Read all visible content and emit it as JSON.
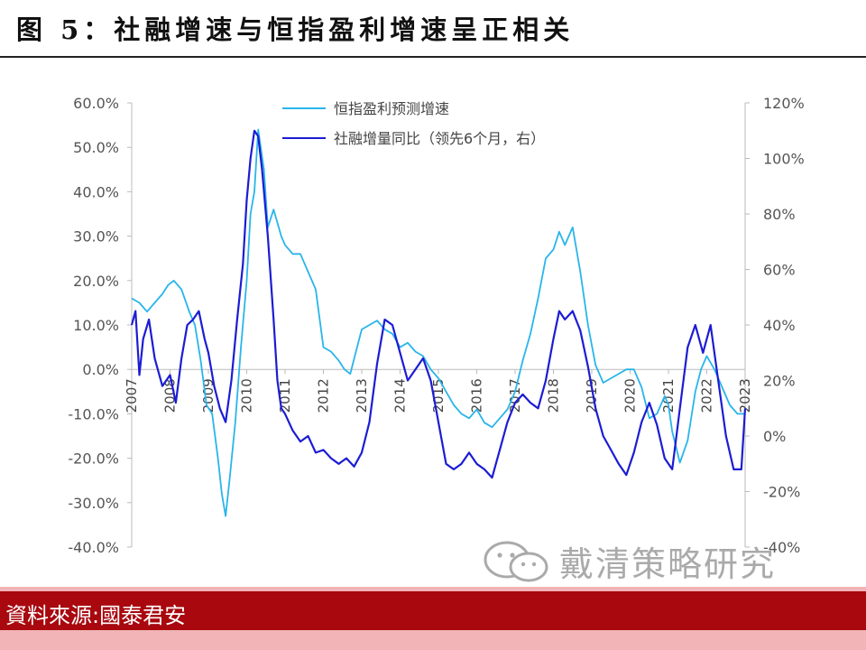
{
  "figure": {
    "title": "图 5：社融增速与恒指盈利增速呈正相关",
    "source": "資料來源:國泰君安",
    "watermark": "戴清策略研究"
  },
  "colors": {
    "series1": "#29b5ea",
    "series2": "#1c1cd4",
    "source_bar": "#a8080e",
    "strip": "#f2b4b6"
  },
  "icons": {
    "watermark": "wechat-logo-icon"
  },
  "chart_data": {
    "type": "line",
    "left_axis": {
      "ylim": [
        -0.4,
        0.6
      ],
      "ticks": [
        0.6,
        0.5,
        0.4,
        0.3,
        0.2,
        0.1,
        0.0,
        -0.1,
        -0.2,
        -0.3,
        -0.4
      ],
      "tick_labels": [
        "60.0%",
        "50.0%",
        "40.0%",
        "30.0%",
        "20.0%",
        "10.0%",
        "0.0%",
        "-10.0%",
        "-20.0%",
        "-30.0%",
        "-40.0%"
      ]
    },
    "right_axis": {
      "ylim": [
        -0.4,
        1.2
      ],
      "ticks": [
        1.2,
        1.0,
        0.8,
        0.6,
        0.4,
        0.2,
        0.0,
        -0.2,
        -0.4
      ],
      "tick_labels": [
        "120%",
        "100%",
        "80%",
        "60%",
        "40%",
        "20%",
        "0%",
        "-20%",
        "-40%"
      ]
    },
    "x_axis": {
      "range": [
        2007.0,
        2023.0
      ],
      "ticks": [
        2007,
        2008,
        2009,
        2010,
        2011,
        2012,
        2013,
        2014,
        2015,
        2016,
        2017,
        2018,
        2019,
        2020,
        2021,
        2022,
        2023
      ],
      "tick_labels": [
        "2007",
        "2008",
        "2009",
        "2010",
        "2011",
        "2012",
        "2013",
        "2014",
        "2015",
        "2016",
        "2017",
        "2018",
        "2019",
        "2020",
        "2021",
        "2022",
        "2023"
      ]
    },
    "legend_position": "top-center",
    "series": [
      {
        "name": "恒指盈利预测增速",
        "axis": "left",
        "color": "#29b5ea",
        "x": [
          2007.0,
          2007.2,
          2007.4,
          2007.6,
          2007.8,
          2007.95,
          2008.1,
          2008.3,
          2008.5,
          2008.65,
          2008.8,
          2008.95,
          2009.1,
          2009.25,
          2009.35,
          2009.45,
          2009.55,
          2009.7,
          2009.85,
          2010.0,
          2010.1,
          2010.2,
          2010.3,
          2010.45,
          2010.55,
          2010.7,
          2010.9,
          2011.0,
          2011.2,
          2011.4,
          2011.6,
          2011.8,
          2012.0,
          2012.2,
          2012.4,
          2012.55,
          2012.7,
          2012.85,
          2013.0,
          2013.2,
          2013.4,
          2013.6,
          2013.8,
          2014.0,
          2014.2,
          2014.4,
          2014.6,
          2014.8,
          2015.0,
          2015.2,
          2015.4,
          2015.6,
          2015.8,
          2016.0,
          2016.2,
          2016.4,
          2016.6,
          2016.8,
          2017.0,
          2017.2,
          2017.4,
          2017.6,
          2017.8,
          2018.0,
          2018.15,
          2018.3,
          2018.5,
          2018.7,
          2018.9,
          2019.1,
          2019.3,
          2019.5,
          2019.7,
          2019.9,
          2020.1,
          2020.3,
          2020.5,
          2020.7,
          2020.9,
          2021.0,
          2021.1,
          2021.3,
          2021.5,
          2021.7,
          2021.85,
          2022.0,
          2022.2,
          2022.4,
          2022.6,
          2022.8,
          2023.0
        ],
        "y": [
          0.16,
          0.15,
          0.13,
          0.15,
          0.17,
          0.19,
          0.2,
          0.18,
          0.13,
          0.1,
          0.02,
          -0.08,
          -0.1,
          -0.2,
          -0.28,
          -0.33,
          -0.25,
          -0.12,
          0.05,
          0.2,
          0.35,
          0.4,
          0.54,
          0.45,
          0.32,
          0.36,
          0.3,
          0.28,
          0.26,
          0.26,
          0.22,
          0.18,
          0.05,
          0.04,
          0.02,
          0.0,
          -0.01,
          0.04,
          0.09,
          0.1,
          0.11,
          0.09,
          0.08,
          0.05,
          0.06,
          0.04,
          0.03,
          0.0,
          -0.02,
          -0.05,
          -0.08,
          -0.1,
          -0.11,
          -0.09,
          -0.12,
          -0.13,
          -0.11,
          -0.09,
          -0.05,
          0.02,
          0.08,
          0.16,
          0.25,
          0.27,
          0.31,
          0.28,
          0.32,
          0.22,
          0.1,
          0.01,
          -0.03,
          -0.02,
          -0.01,
          0.0,
          0.0,
          -0.04,
          -0.11,
          -0.1,
          -0.06,
          -0.08,
          -0.14,
          -0.21,
          -0.16,
          -0.05,
          0.0,
          0.03,
          0.0,
          -0.04,
          -0.08,
          -0.1,
          -0.1
        ]
      },
      {
        "name": "社融增量同比（领先6个月，右）",
        "axis": "right",
        "color": "#1c1cd4",
        "x": [
          2007.0,
          2007.1,
          2007.2,
          2007.3,
          2007.45,
          2007.6,
          2007.8,
          2008.0,
          2008.15,
          2008.3,
          2008.45,
          2008.6,
          2008.75,
          2008.9,
          2009.0,
          2009.15,
          2009.3,
          2009.45,
          2009.6,
          2009.75,
          2009.9,
          2010.0,
          2010.1,
          2010.2,
          2010.3,
          2010.4,
          2010.55,
          2010.7,
          2010.8,
          2010.9,
          2011.0,
          2011.2,
          2011.4,
          2011.6,
          2011.8,
          2012.0,
          2012.2,
          2012.4,
          2012.6,
          2012.8,
          2013.0,
          2013.2,
          2013.4,
          2013.6,
          2013.8,
          2014.0,
          2014.2,
          2014.4,
          2014.6,
          2014.8,
          2015.0,
          2015.2,
          2015.4,
          2015.6,
          2015.8,
          2016.0,
          2016.2,
          2016.4,
          2016.6,
          2016.8,
          2017.0,
          2017.2,
          2017.4,
          2017.6,
          2017.8,
          2018.0,
          2018.15,
          2018.3,
          2018.5,
          2018.7,
          2018.9,
          2019.1,
          2019.3,
          2019.5,
          2019.7,
          2019.9,
          2020.1,
          2020.3,
          2020.5,
          2020.7,
          2020.9,
          2021.1,
          2021.3,
          2021.5,
          2021.7,
          2021.9,
          2022.1,
          2022.3,
          2022.5,
          2022.7,
          2022.9,
          2023.0
        ],
        "y": [
          0.4,
          0.45,
          0.22,
          0.35,
          0.42,
          0.28,
          0.18,
          0.22,
          0.12,
          0.28,
          0.4,
          0.42,
          0.45,
          0.35,
          0.3,
          0.18,
          0.1,
          0.05,
          0.2,
          0.42,
          0.62,
          0.85,
          1.0,
          1.1,
          1.08,
          0.96,
          0.72,
          0.42,
          0.2,
          0.1,
          0.08,
          0.02,
          -0.02,
          0.0,
          -0.06,
          -0.05,
          -0.08,
          -0.1,
          -0.08,
          -0.11,
          -0.06,
          0.05,
          0.26,
          0.42,
          0.4,
          0.3,
          0.2,
          0.24,
          0.28,
          0.2,
          0.05,
          -0.1,
          -0.12,
          -0.1,
          -0.06,
          -0.1,
          -0.12,
          -0.15,
          -0.05,
          0.05,
          0.12,
          0.15,
          0.12,
          0.1,
          0.2,
          0.35,
          0.45,
          0.42,
          0.45,
          0.38,
          0.25,
          0.1,
          0.0,
          -0.05,
          -0.1,
          -0.14,
          -0.06,
          0.05,
          0.12,
          0.04,
          -0.08,
          -0.12,
          0.1,
          0.32,
          0.4,
          0.3,
          0.4,
          0.2,
          0.0,
          -0.12,
          -0.12,
          0.1
        ]
      }
    ]
  }
}
